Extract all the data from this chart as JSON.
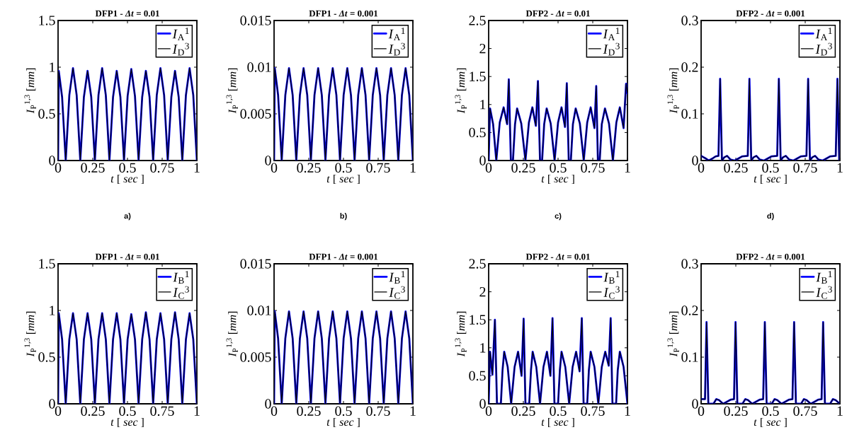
{
  "chart_data": [
    {
      "type": "line",
      "title": "DFP1 - *Δt* = 0.01",
      "xlabel": "*t* [ *sec* ]",
      "ylabel": "*I*$_{P}$$^{1,3}$ [*mm*]",
      "annotations": [
        "a)"
      ],
      "xlim": [
        0,
        1
      ],
      "ylim": [
        0,
        1.5
      ],
      "xticks": [
        0,
        0.25,
        0.5,
        0.75,
        1
      ],
      "yticks": [
        0,
        0.5,
        1,
        1.5
      ],
      "legend": "top right",
      "x": [
        0,
        0.005,
        0.029,
        0.055,
        0.081,
        0.1075,
        0.134,
        0.16,
        0.186,
        0.2125,
        0.239,
        0.265,
        0.291,
        0.3175,
        0.344,
        0.37,
        0.396,
        0.4225,
        0.449,
        0.475,
        0.501,
        0.5275,
        0.554,
        0.58,
        0.606,
        0.6325,
        0.659,
        0.685,
        0.711,
        0.7375,
        0.764,
        0.79,
        0.816,
        0.8425,
        0.869,
        0.895,
        0.921,
        0.9475,
        0.974,
        1
      ],
      "series": [
        {
          "name": "*I*$_{A}$$^{1}$",
          "color": "#0000ff",
          "values": [
            0,
            0.96,
            0.68,
            0,
            0.7,
            0.99,
            0.7,
            0,
            0.68,
            0.96,
            0.68,
            0,
            0.7,
            0.99,
            0.7,
            0,
            0.68,
            0.96,
            0.68,
            0,
            0.69,
            0.98,
            0.69,
            0,
            0.68,
            0.96,
            0.68,
            0,
            0.7,
            0.99,
            0.7,
            0,
            0.68,
            0.96,
            0.68,
            0,
            0.7,
            0.99,
            0.7,
            0
          ]
        },
        {
          "name": "*I*$_{D}$$^{3}$",
          "color": "#000000",
          "values": [
            0,
            0.96,
            0.68,
            0,
            0.7,
            0.99,
            0.7,
            0,
            0.68,
            0.96,
            0.68,
            0,
            0.7,
            0.99,
            0.7,
            0,
            0.68,
            0.96,
            0.68,
            0,
            0.69,
            0.98,
            0.69,
            0,
            0.68,
            0.96,
            0.68,
            0,
            0.7,
            0.99,
            0.7,
            0,
            0.68,
            0.96,
            0.68,
            0,
            0.7,
            0.99,
            0.7,
            0
          ]
        }
      ]
    },
    {
      "type": "line",
      "title": "DFP1 - *Δt* = 0.001",
      "xlabel": "*t* [ *sec* ]",
      "ylabel": "*I*$_{P}$$^{1,3}$ [*mm*]",
      "annotations": [
        "b)"
      ],
      "xlim": [
        0,
        1
      ],
      "ylim": [
        0,
        0.015
      ],
      "xticks": [
        0,
        0.25,
        0.5,
        0.75,
        1
      ],
      "yticks": [
        0,
        0.005,
        0.01,
        0.015
      ],
      "legend": "top right",
      "x": [
        0,
        0.005,
        0.029,
        0.055,
        0.081,
        0.1075,
        0.134,
        0.16,
        0.186,
        0.2125,
        0.239,
        0.265,
        0.291,
        0.3175,
        0.344,
        0.37,
        0.396,
        0.4225,
        0.449,
        0.475,
        0.501,
        0.5275,
        0.554,
        0.58,
        0.606,
        0.6325,
        0.659,
        0.685,
        0.711,
        0.7375,
        0.764,
        0.79,
        0.816,
        0.8425,
        0.869,
        0.895,
        0.921,
        0.9475,
        0.974,
        1
      ],
      "series": [
        {
          "name": "*I*$_{A}$$^{1}$",
          "color": "#0000ff",
          "values": [
            0,
            0.0099,
            0.007,
            0,
            0.007,
            0.0099,
            0.007,
            0,
            0.007,
            0.0099,
            0.007,
            0,
            0.007,
            0.0099,
            0.007,
            0,
            0.007,
            0.0099,
            0.007,
            0,
            0.007,
            0.0099,
            0.007,
            0,
            0.007,
            0.0099,
            0.007,
            0,
            0.007,
            0.0099,
            0.007,
            0,
            0.007,
            0.0099,
            0.007,
            0,
            0.007,
            0.0099,
            0.007,
            0
          ]
        },
        {
          "name": "*I*$_{D}$$^{3}$",
          "color": "#000000",
          "values": [
            0,
            0.0099,
            0.007,
            0,
            0.007,
            0.0099,
            0.007,
            0,
            0.007,
            0.0099,
            0.007,
            0,
            0.007,
            0.0099,
            0.007,
            0,
            0.007,
            0.0099,
            0.007,
            0,
            0.007,
            0.0099,
            0.007,
            0,
            0.007,
            0.0099,
            0.007,
            0,
            0.007,
            0.0099,
            0.007,
            0,
            0.007,
            0.0099,
            0.007,
            0,
            0.007,
            0.0099,
            0.007,
            0
          ]
        }
      ]
    },
    {
      "type": "line",
      "title": "DFP2 - *Δt* = 0.01",
      "xlabel": "*t* [ *sec* ]",
      "ylabel": "*I*$_{P}$$^{1,3}$ [*mm*]",
      "annotations": [
        "c)"
      ],
      "xlim": [
        0,
        1
      ],
      "ylim": [
        0,
        2.5
      ],
      "xticks": [
        0,
        0.25,
        0.5,
        0.75,
        1
      ],
      "yticks": [
        0,
        0.5,
        1,
        1.5,
        2,
        2.5
      ],
      "legend": "top right",
      "x": [
        0,
        0.01,
        0.032,
        0.055,
        0.08,
        0.108,
        0.133,
        0.145,
        0.16,
        0.175,
        0.19,
        0.205,
        0.235,
        0.265,
        0.29,
        0.315,
        0.34,
        0.355,
        0.37,
        0.385,
        0.4,
        0.418,
        0.447,
        0.475,
        0.5,
        0.525,
        0.55,
        0.563,
        0.577,
        0.592,
        0.607,
        0.627,
        0.657,
        0.685,
        0.71,
        0.735,
        0.762,
        0.775,
        0.787,
        0.8,
        0.815,
        0.838,
        0.867,
        0.895,
        0.92,
        0.945,
        0.972,
        0.99,
        1
      ],
      "series": [
        {
          "name": "*I*$_{A}$$^{1}$",
          "color": "#0000ff",
          "values": [
            0,
            0.93,
            0.65,
            0,
            0.68,
            0.95,
            0.65,
            1.45,
            0,
            0,
            0.65,
            0.93,
            0.66,
            0,
            0.68,
            0.95,
            0.62,
            1.42,
            0,
            0,
            0.65,
            0.93,
            0.66,
            0,
            0.68,
            0.95,
            0.6,
            1.38,
            0,
            0,
            0.65,
            0.93,
            0.66,
            0,
            0.68,
            0.95,
            0.58,
            1.33,
            0,
            0,
            0.65,
            0.93,
            0.66,
            0,
            0.68,
            0.95,
            0.58,
            1.37,
            1.2
          ]
        },
        {
          "name": "*I*$_{D}$$^{3}$",
          "color": "#000000",
          "values": [
            0,
            0.93,
            0.65,
            0,
            0.68,
            0.95,
            0.65,
            1.45,
            0,
            0,
            0.65,
            0.93,
            0.66,
            0,
            0.68,
            0.95,
            0.62,
            1.42,
            0,
            0,
            0.65,
            0.93,
            0.66,
            0,
            0.68,
            0.95,
            0.6,
            1.38,
            0,
            0,
            0.65,
            0.93,
            0.66,
            0,
            0.68,
            0.95,
            0.58,
            1.33,
            0,
            0,
            0.65,
            0.93,
            0.66,
            0,
            0.68,
            0.95,
            0.58,
            1.37,
            1.2
          ]
        }
      ]
    },
    {
      "type": "line",
      "title": "DFP2 - *Δt* = 0.001",
      "xlabel": "*t* [ *sec* ]",
      "ylabel": "*I*$_{P}$$^{1,3}$ [*mm*]",
      "annotations": [
        "d)"
      ],
      "xlim": [
        0,
        1
      ],
      "ylim": [
        0,
        0.3
      ],
      "xticks": [
        0,
        0.25,
        0.5,
        0.75,
        1
      ],
      "yticks": [
        0,
        0.1,
        0.2,
        0.3
      ],
      "legend": "top right",
      "x": [
        0,
        0.03,
        0.055,
        0.085,
        0.105,
        0.125,
        0.137,
        0.15,
        0.167,
        0.187,
        0.212,
        0.242,
        0.272,
        0.297,
        0.336,
        0.348,
        0.361,
        0.378,
        0.398,
        0.423,
        0.453,
        0.483,
        0.508,
        0.548,
        0.56,
        0.573,
        0.59,
        0.61,
        0.635,
        0.665,
        0.695,
        0.72,
        0.759,
        0.771,
        0.784,
        0.801,
        0.821,
        0.846,
        0.876,
        0.906,
        0.931,
        0.97,
        0.982,
        0.995,
        1
      ],
      "series": [
        {
          "name": "*I*$_{A}$$^{1}$",
          "color": "#0000ff",
          "values": [
            0.01,
            0.005,
            0,
            0.005,
            0.009,
            0.01,
            0.175,
            0,
            0.007,
            0.01,
            0.002,
            0,
            0.005,
            0.009,
            0.01,
            0.175,
            0,
            0.007,
            0.01,
            0.002,
            0,
            0.005,
            0.009,
            0.01,
            0.175,
            0,
            0.007,
            0.01,
            0.002,
            0,
            0.005,
            0.009,
            0.01,
            0.175,
            0,
            0.007,
            0.01,
            0.002,
            0,
            0.005,
            0.009,
            0.01,
            0.175,
            0,
            0
          ]
        },
        {
          "name": "*I*$_{D}$$^{3}$",
          "color": "#000000",
          "values": [
            0.01,
            0.005,
            0,
            0.005,
            0.009,
            0.01,
            0.175,
            0,
            0.007,
            0.01,
            0.002,
            0,
            0.005,
            0.009,
            0.01,
            0.175,
            0,
            0.007,
            0.01,
            0.002,
            0,
            0.005,
            0.009,
            0.01,
            0.175,
            0,
            0.007,
            0.01,
            0.002,
            0,
            0.005,
            0.009,
            0.01,
            0.175,
            0,
            0.007,
            0.01,
            0.002,
            0,
            0.005,
            0.009,
            0.01,
            0.175,
            0,
            0
          ]
        }
      ]
    },
    {
      "type": "line",
      "title": "DFP1 - *Δt* = 0.01",
      "xlabel": "*t* [ *sec* ]",
      "ylabel": "*I*$_{P}$$^{1,3}$ [*mm*]",
      "xlim": [
        0,
        1
      ],
      "ylim": [
        0,
        1.5
      ],
      "xticks": [
        0,
        0.25,
        0.5,
        0.75,
        1
      ],
      "yticks": [
        0,
        0.5,
        1,
        1.5
      ],
      "legend": "top right",
      "x": [
        0,
        0.005,
        0.029,
        0.055,
        0.081,
        0.1075,
        0.134,
        0.16,
        0.186,
        0.2125,
        0.239,
        0.265,
        0.291,
        0.3175,
        0.344,
        0.37,
        0.396,
        0.4225,
        0.449,
        0.475,
        0.501,
        0.5275,
        0.554,
        0.58,
        0.606,
        0.6325,
        0.659,
        0.685,
        0.711,
        0.7375,
        0.764,
        0.79,
        0.816,
        0.8425,
        0.869,
        0.895,
        0.921,
        0.9475,
        0.974,
        1
      ],
      "series": [
        {
          "name": "*I*$_{B}$$^{1}$",
          "color": "#0000ff",
          "values": [
            0,
            0.97,
            0.69,
            0,
            0.69,
            0.97,
            0.69,
            0,
            0.69,
            0.97,
            0.69,
            0,
            0.69,
            0.97,
            0.69,
            0,
            0.69,
            0.97,
            0.69,
            0,
            0.69,
            0.96,
            0.69,
            0,
            0.69,
            0.98,
            0.69,
            0,
            0.69,
            0.97,
            0.69,
            0,
            0.69,
            0.98,
            0.69,
            0,
            0.69,
            0.97,
            0.69,
            0
          ]
        },
        {
          "name": "*I*$_{C}$$^{3}$",
          "color": "#000000",
          "values": [
            0,
            0.97,
            0.69,
            0,
            0.69,
            0.97,
            0.69,
            0,
            0.69,
            0.97,
            0.69,
            0,
            0.69,
            0.97,
            0.69,
            0,
            0.69,
            0.97,
            0.69,
            0,
            0.69,
            0.96,
            0.69,
            0,
            0.69,
            0.98,
            0.69,
            0,
            0.69,
            0.97,
            0.69,
            0,
            0.69,
            0.98,
            0.69,
            0,
            0.69,
            0.97,
            0.69,
            0
          ]
        }
      ]
    },
    {
      "type": "line",
      "title": "DFP1 - *Δt* = 0.001",
      "xlabel": "*t* [ *sec* ]",
      "ylabel": "*I*$_{P}$$^{1,3}$ [*mm*]",
      "xlim": [
        0,
        1
      ],
      "ylim": [
        0,
        0.015
      ],
      "xticks": [
        0,
        0.25,
        0.5,
        0.75,
        1
      ],
      "yticks": [
        0,
        0.005,
        0.01,
        0.015
      ],
      "legend": "top right",
      "x": [
        0,
        0.005,
        0.029,
        0.055,
        0.081,
        0.1075,
        0.134,
        0.16,
        0.186,
        0.2125,
        0.239,
        0.265,
        0.291,
        0.3175,
        0.344,
        0.37,
        0.396,
        0.4225,
        0.449,
        0.475,
        0.501,
        0.5275,
        0.554,
        0.58,
        0.606,
        0.6325,
        0.659,
        0.685,
        0.711,
        0.7375,
        0.764,
        0.79,
        0.816,
        0.8425,
        0.869,
        0.895,
        0.921,
        0.9475,
        0.974,
        1
      ],
      "series": [
        {
          "name": "*I*$_{B}$$^{1}$",
          "color": "#0000ff",
          "values": [
            0,
            0.0099,
            0.007,
            0,
            0.007,
            0.0099,
            0.007,
            0,
            0.007,
            0.0099,
            0.007,
            0,
            0.007,
            0.0099,
            0.007,
            0,
            0.007,
            0.0099,
            0.007,
            0,
            0.007,
            0.0099,
            0.007,
            0,
            0.007,
            0.0099,
            0.007,
            0,
            0.007,
            0.0099,
            0.007,
            0,
            0.007,
            0.0099,
            0.007,
            0,
            0.007,
            0.0099,
            0.007,
            0
          ]
        },
        {
          "name": "*I*$_{C}$$^{3}$",
          "color": "#000000",
          "values": [
            0,
            0.0099,
            0.007,
            0,
            0.007,
            0.0099,
            0.007,
            0,
            0.007,
            0.0099,
            0.007,
            0,
            0.007,
            0.0099,
            0.007,
            0,
            0.007,
            0.0099,
            0.007,
            0,
            0.007,
            0.0099,
            0.007,
            0,
            0.007,
            0.0099,
            0.007,
            0,
            0.007,
            0.0099,
            0.007,
            0,
            0.007,
            0.0099,
            0.007,
            0,
            0.007,
            0.0099,
            0.007,
            0
          ]
        }
      ]
    },
    {
      "type": "line",
      "title": "DFP2 - *Δt* = 0.01",
      "xlabel": "*t* [ *sec* ]",
      "ylabel": "*I*$_{P}$$^{1,3}$ [*mm*]",
      "xlim": [
        0,
        1
      ],
      "ylim": [
        0,
        2.5
      ],
      "xticks": [
        0,
        0.25,
        0.5,
        0.75,
        1
      ],
      "yticks": [
        0,
        0.5,
        1,
        1.5,
        2,
        2.5
      ],
      "legend": "top right",
      "x": [
        0,
        0.01,
        0.027,
        0.045,
        0.06,
        0.088,
        0.1,
        0.112,
        0.137,
        0.162,
        0.187,
        0.212,
        0.237,
        0.252,
        0.265,
        0.292,
        0.305,
        0.317,
        0.343,
        0.37,
        0.395,
        0.42,
        0.445,
        0.46,
        0.474,
        0.5,
        0.513,
        0.525,
        0.552,
        0.58,
        0.605,
        0.63,
        0.655,
        0.671,
        0.684,
        0.71,
        0.722,
        0.735,
        0.762,
        0.79,
        0.815,
        0.84,
        0.865,
        0.879,
        0.892,
        0.918,
        0.93,
        0.945,
        0.972,
        1
      ],
      "series": [
        {
          "name": "*I*$_{B}$$^{1}$",
          "color": "#0000ff",
          "values": [
            0,
            0.93,
            0.52,
            1.5,
            0,
            0,
            0.6,
            0.93,
            0.66,
            0,
            0.66,
            0.93,
            0.5,
            1.52,
            0,
            0,
            0.6,
            0.93,
            0.66,
            0,
            0.66,
            0.93,
            0.5,
            1.53,
            0,
            0,
            0.6,
            0.93,
            0.66,
            0,
            0.66,
            0.93,
            0.58,
            1.53,
            0,
            0,
            0.6,
            0.93,
            0.66,
            0,
            0.66,
            0.93,
            0.68,
            1.53,
            0,
            0,
            0.6,
            0.93,
            0.66,
            0
          ]
        },
        {
          "name": "*I*$_{C}$$^{3}$",
          "color": "#000000",
          "values": [
            0,
            0.93,
            0.52,
            1.5,
            0,
            0,
            0.6,
            0.93,
            0.66,
            0,
            0.66,
            0.93,
            0.5,
            1.52,
            0,
            0,
            0.6,
            0.93,
            0.66,
            0,
            0.66,
            0.93,
            0.5,
            1.53,
            0,
            0,
            0.6,
            0.93,
            0.66,
            0,
            0.66,
            0.93,
            0.58,
            1.53,
            0,
            0,
            0.6,
            0.93,
            0.66,
            0,
            0.66,
            0.93,
            0.68,
            1.53,
            0,
            0,
            0.6,
            0.93,
            0.66,
            0
          ]
        }
      ]
    },
    {
      "type": "line",
      "title": "DFP2 - *Δt* = 0.001",
      "xlabel": "*t* [ *sec* ]",
      "ylabel": "*I*$_{P}$$^{1,3}$ [*mm*]",
      "xlim": [
        0,
        1
      ],
      "ylim": [
        0,
        0.3
      ],
      "xticks": [
        0,
        0.25,
        0.5,
        0.75,
        1
      ],
      "yticks": [
        0,
        0.1,
        0.2,
        0.3
      ],
      "legend": "top right",
      "x": [
        0,
        0.015,
        0.028,
        0.039,
        0.052,
        0.089,
        0.109,
        0.129,
        0.159,
        0.189,
        0.214,
        0.237,
        0.248,
        0.261,
        0.298,
        0.318,
        0.338,
        0.368,
        0.398,
        0.423,
        0.447,
        0.459,
        0.472,
        0.509,
        0.529,
        0.549,
        0.579,
        0.609,
        0.634,
        0.658,
        0.67,
        0.683,
        0.72,
        0.74,
        0.76,
        0.79,
        0.82,
        0.845,
        0.868,
        0.879,
        0.892,
        0.929,
        0.949,
        0.969,
        1
      ],
      "series": [
        {
          "name": "*I*$_{B}$$^{1}$",
          "color": "#0000ff",
          "values": [
            0.01,
            0.01,
            0.01,
            0.175,
            0,
            0,
            0.01,
            0.008,
            0,
            0.005,
            0.009,
            0.01,
            0.175,
            0,
            0,
            0.01,
            0.008,
            0,
            0.005,
            0.009,
            0.01,
            0.175,
            0,
            0,
            0.01,
            0.008,
            0,
            0.005,
            0.009,
            0.01,
            0.175,
            0,
            0,
            0.01,
            0.008,
            0,
            0.005,
            0.009,
            0.01,
            0.175,
            0,
            0,
            0.01,
            0.008,
            0
          ]
        },
        {
          "name": "*I*$_{C}$$^{3}$",
          "color": "#000000",
          "values": [
            0.01,
            0.01,
            0.01,
            0.175,
            0,
            0,
            0.01,
            0.008,
            0,
            0.005,
            0.009,
            0.01,
            0.175,
            0,
            0,
            0.01,
            0.008,
            0,
            0.005,
            0.009,
            0.01,
            0.175,
            0,
            0,
            0.01,
            0.008,
            0,
            0.005,
            0.009,
            0.01,
            0.175,
            0,
            0,
            0.01,
            0.008,
            0,
            0.005,
            0.009,
            0.01,
            0.175,
            0,
            0,
            0.01,
            0.008,
            0
          ]
        }
      ]
    }
  ]
}
